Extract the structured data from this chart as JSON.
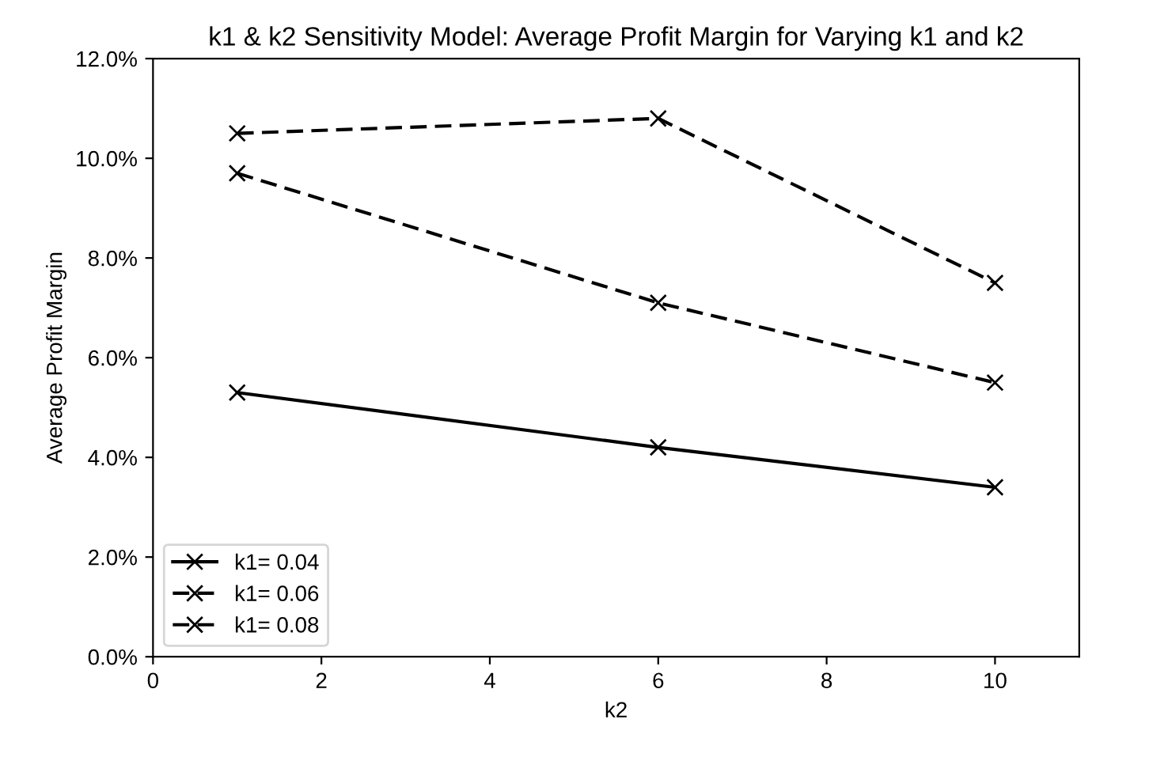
{
  "chart_data": {
    "type": "line",
    "title": "k1 & k2 Sensitivity Model: Average Profit Margin for Varying k1 and k2",
    "xlabel": "k2",
    "ylabel": "Average Profit Margin",
    "x": [
      1,
      6,
      10
    ],
    "series": [
      {
        "name": "k1= 0.04",
        "color": "#000000",
        "values": [
          5.3,
          4.2,
          3.4
        ],
        "line_style": "solid"
      },
      {
        "name": "k1= 0.06",
        "color": "#000000",
        "values": [
          9.7,
          7.1,
          5.5
        ],
        "line_style": "dashed"
      },
      {
        "name": "k1= 0.08",
        "color": "#000000",
        "values": [
          10.5,
          10.8,
          7.5
        ],
        "line_style": "dashed"
      }
    ],
    "marker": "cross",
    "xlim": [
      0,
      11
    ],
    "xticks": [
      0,
      2,
      4,
      6,
      8,
      10
    ],
    "ylim": [
      0,
      12
    ],
    "yticks": [
      {
        "value": 0,
        "label": "0.0%"
      },
      {
        "value": 2,
        "label": "2.0%"
      },
      {
        "value": 4,
        "label": "4.0%"
      },
      {
        "value": 6,
        "label": "6.0%"
      },
      {
        "value": 8,
        "label": "8.0%"
      },
      {
        "value": 10,
        "label": "10.0%"
      },
      {
        "value": 12,
        "label": "12.0%"
      }
    ],
    "grid": false,
    "legend": "bottom left"
  }
}
